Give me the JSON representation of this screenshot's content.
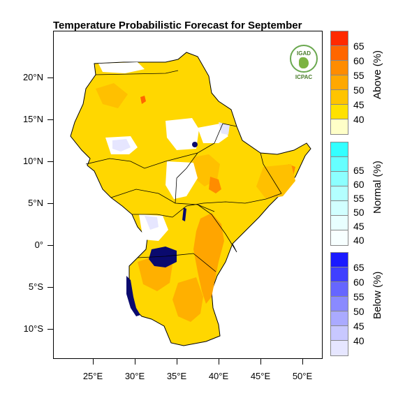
{
  "title": "Temperature Probabilistic Forecast for September",
  "latitude_labels": [
    "20°N",
    "15°N",
    "10°N",
    "5°N",
    "0°",
    "5°S",
    "10°S"
  ],
  "longitude_labels": [
    "25°E",
    "30°E",
    "35°E",
    "40°E",
    "45°E",
    "50°E"
  ],
  "logo": {
    "top_text": "IGAD",
    "bottom_text": "ICPAC"
  },
  "legends": {
    "above": {
      "title": "Above (%)",
      "ticks": [
        "65",
        "60",
        "55",
        "50",
        "45",
        "40"
      ],
      "colors": [
        "#ff2a00",
        "#ff6600",
        "#ff8c00",
        "#ffa800",
        "#ffc400",
        "#ffe100",
        "#ffffc8"
      ]
    },
    "normal": {
      "title": "Normal (%)",
      "ticks": [
        "65",
        "60",
        "55",
        "50",
        "45",
        "40"
      ],
      "colors": [
        "#33ffff",
        "#66ffff",
        "#8cffff",
        "#b3ffff",
        "#d1ffff",
        "#e8ffff",
        "#f7ffff"
      ]
    },
    "below": {
      "title": "Below (%)",
      "ticks": [
        "65",
        "60",
        "55",
        "50",
        "45",
        "40"
      ],
      "colors": [
        "#1a1aff",
        "#4040ff",
        "#6666ff",
        "#8a8aff",
        "#aaaaff",
        "#c8c8ff",
        "#e6e6ff"
      ]
    }
  },
  "colors": {
    "lake": "#0a0a6e",
    "base_yellow": "#ffd700",
    "orange": "#ffa500",
    "light": "#ffffc8"
  }
}
